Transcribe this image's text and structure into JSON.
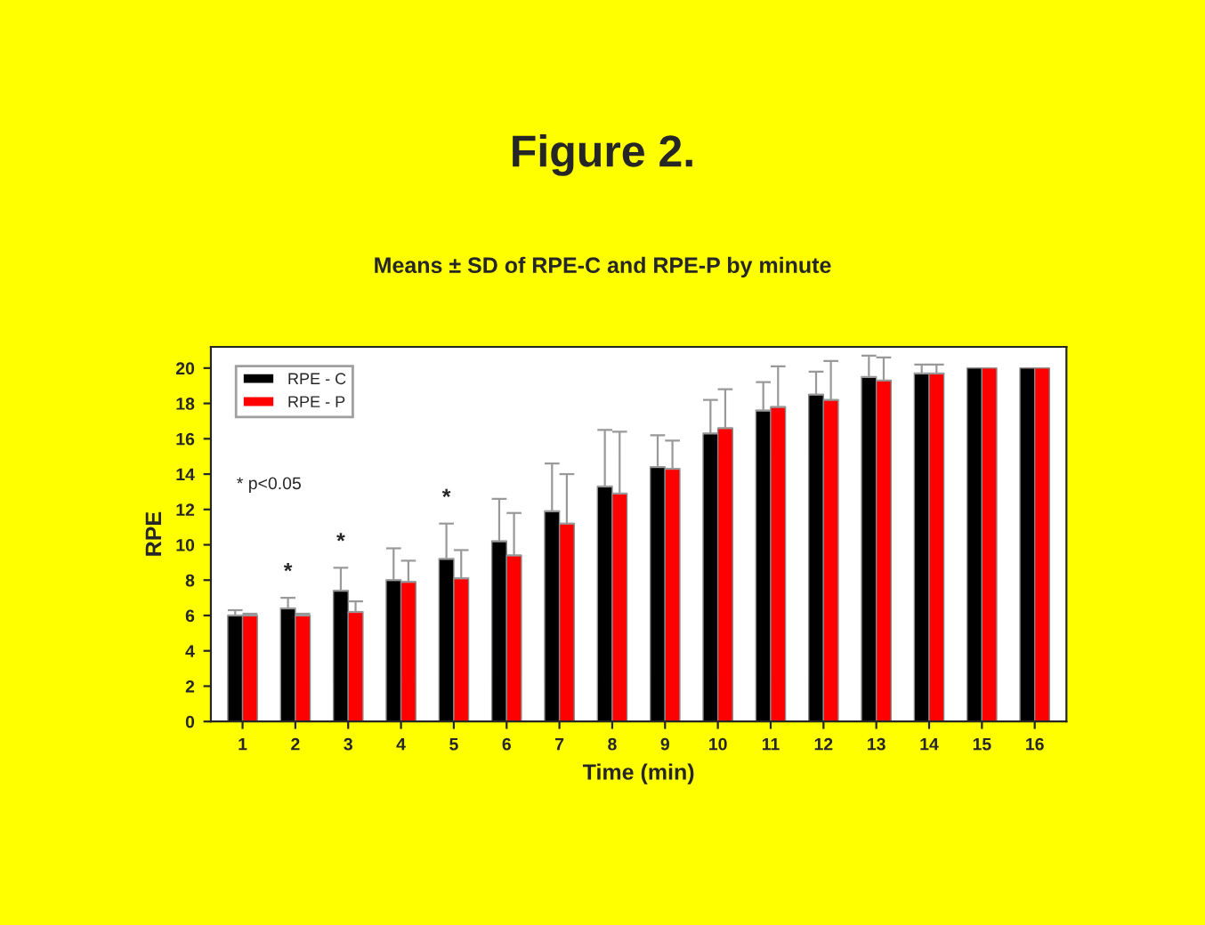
{
  "chart_data": {
    "type": "bar",
    "title": "Figure 2.",
    "subtitle": "Means ± SD of RPE-C and RPE-P by minute",
    "xlabel": "Time (min)",
    "ylabel": "RPE",
    "categories": [
      "1",
      "2",
      "3",
      "4",
      "5",
      "6",
      "7",
      "8",
      "9",
      "10",
      "11",
      "12",
      "13",
      "14",
      "15",
      "16"
    ],
    "series": [
      {
        "name": "RPE - C",
        "color": "#000000",
        "values": [
          6.0,
          6.4,
          7.4,
          8.0,
          9.2,
          10.2,
          11.9,
          13.3,
          14.4,
          16.3,
          17.6,
          18.5,
          19.5,
          19.7,
          20,
          20
        ],
        "errors": [
          0.3,
          0.6,
          1.3,
          1.8,
          2.0,
          2.4,
          2.7,
          3.2,
          1.8,
          1.9,
          1.6,
          1.3,
          1.2,
          0.5,
          null,
          null
        ]
      },
      {
        "name": "RPE - P",
        "color": "#ff0000",
        "values": [
          6.0,
          6.0,
          6.2,
          7.9,
          8.1,
          9.4,
          11.2,
          12.9,
          14.3,
          16.6,
          17.8,
          18.2,
          19.3,
          19.7,
          20,
          20
        ],
        "errors": [
          0.1,
          0.1,
          0.6,
          1.2,
          1.6,
          2.4,
          2.8,
          3.5,
          1.6,
          2.2,
          2.3,
          2.2,
          1.3,
          0.5,
          null,
          null
        ]
      }
    ],
    "ylim": [
      0,
      21.2
    ],
    "yticks": [
      0,
      2,
      4,
      6,
      8,
      10,
      12,
      14,
      16,
      18,
      20
    ],
    "grid": false,
    "legend": "top left",
    "annotations": [
      "* p<0.05",
      {
        "text": "*",
        "x": "2",
        "y": 6.4
      },
      {
        "text": "*",
        "x": "3",
        "y": 7.4
      },
      {
        "text": "*",
        "x": "5",
        "y": 9.2
      }
    ]
  }
}
